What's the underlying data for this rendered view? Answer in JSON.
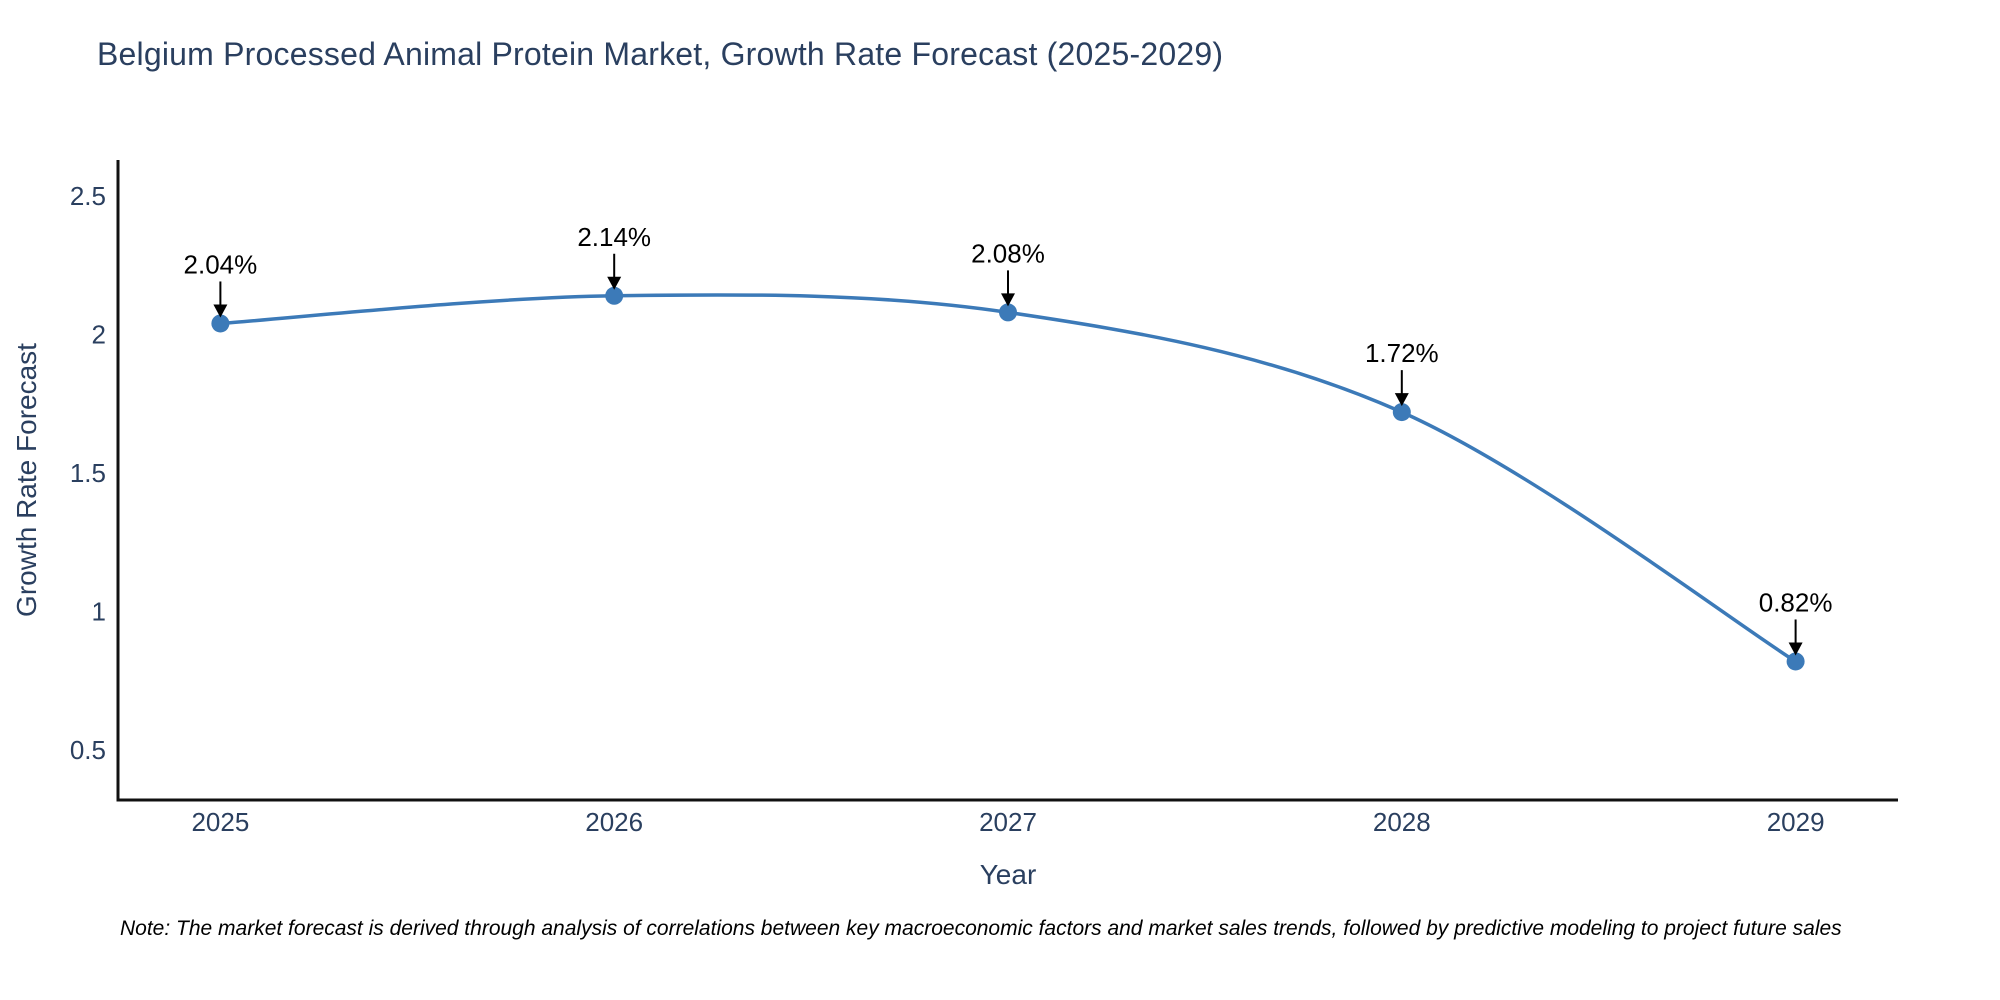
{
  "title": "Belgium Processed Animal Protein Market, Growth Rate Forecast (2025-2029)",
  "note": "Note: The market forecast is derived through analysis of correlations between key macroeconomic factors and market sales trends, followed by predictive modeling to project future sales",
  "chart_data": {
    "type": "line",
    "title": "Belgium Processed Animal Protein Market, Growth Rate Forecast (2025-2029)",
    "xlabel": "Year",
    "ylabel": "Growth Rate Forecast",
    "x": [
      2025,
      2026,
      2027,
      2028,
      2029
    ],
    "values": [
      2.04,
      2.14,
      2.08,
      1.72,
      0.82
    ],
    "point_labels": [
      "2.04%",
      "2.14%",
      "2.08%",
      "1.72%",
      "0.82%"
    ],
    "x_tick_labels": [
      "2025",
      "2026",
      "2027",
      "2028",
      "2029"
    ],
    "y_ticks": [
      0.5,
      1.0,
      1.5,
      2.0,
      2.5
    ],
    "y_tick_labels": [
      "0.5",
      "1",
      "1.5",
      "2",
      "2.5"
    ],
    "xlim": [
      2024.74,
      2029.26
    ],
    "ylim": [
      0.32,
      2.63
    ],
    "line_shape": "spline",
    "grid": false,
    "legend": "none",
    "colors": {
      "line": "#3c7ab8",
      "marker": "#3c7ab8",
      "axis_line": "#111111",
      "tick_text": "#2a3f5f",
      "axis_title_text": "#2a3f5f",
      "annotation": "#000000"
    }
  }
}
